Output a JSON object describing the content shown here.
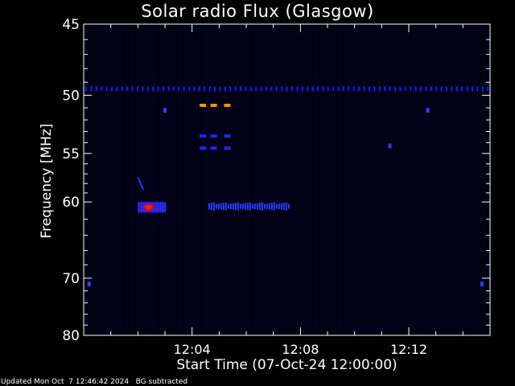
{
  "chart_data": {
    "type": "heatmap",
    "title": "Solar radio Flux (Glasgow)",
    "xlabel": "Start Time (07-Oct-24 12:00:00)",
    "ylabel": "Frequency [MHz]",
    "x_unit": "minutes after 12:00",
    "xlim": [
      0,
      15.0
    ],
    "ylim": [
      45,
      80
    ],
    "y_scale": "reciprocal",
    "x_ticks": [
      {
        "minute": 4,
        "label": "12:04"
      },
      {
        "minute": 8,
        "label": "12:08"
      },
      {
        "minute": 12,
        "label": "12:12"
      }
    ],
    "y_ticks": [
      {
        "value": 45,
        "label": "45"
      },
      {
        "value": 50,
        "label": "50"
      },
      {
        "value": 55,
        "label": "55"
      },
      {
        "value": 60,
        "label": "60"
      },
      {
        "value": 70,
        "label": "70"
      },
      {
        "value": 80,
        "label": "80"
      }
    ],
    "features": [
      {
        "kind": "interference-line",
        "freq_mhz": 49.5,
        "x_start": 0,
        "x_end": 15,
        "color": "#1a1aff"
      },
      {
        "kind": "burst",
        "freq_mhz": 60.6,
        "x_start": 2.0,
        "x_end": 3.0,
        "peak_minute": 2.4,
        "color": "#ff2020"
      },
      {
        "kind": "burst-tail",
        "freq_mhz": 58.0,
        "x_start": 2.0,
        "x_end": 2.2,
        "color": "#3030ff"
      },
      {
        "kind": "band",
        "freq_mhz": 60.5,
        "x_start": 4.6,
        "x_end": 7.6,
        "color": "#2a3cff"
      },
      {
        "kind": "marks",
        "freq_mhz": 50.8,
        "minutes": [
          4.4,
          4.8,
          5.3
        ],
        "color": "#ff9000"
      },
      {
        "kind": "marks",
        "freq_mhz": 53.4,
        "minutes": [
          4.4,
          4.8,
          5.3
        ],
        "color": "#2222ff"
      },
      {
        "kind": "marks",
        "freq_mhz": 54.5,
        "minutes": [
          4.4,
          4.8,
          5.3
        ],
        "color": "#2222ff"
      },
      {
        "kind": "spot",
        "freq_mhz": 54.3,
        "minutes": [
          11.3
        ],
        "color": "#2a3cff"
      },
      {
        "kind": "spot",
        "freq_mhz": 51.2,
        "minutes": [
          3.0,
          12.7
        ],
        "color": "#2a3cff"
      },
      {
        "kind": "spot",
        "freq_mhz": 70.9,
        "minutes": [
          0.2,
          14.7
        ],
        "color": "#2a3cff"
      }
    ]
  },
  "footer": {
    "updated": "Updated Mon Oct  7 12:46:42 2024",
    "note": "BG subtracted"
  }
}
